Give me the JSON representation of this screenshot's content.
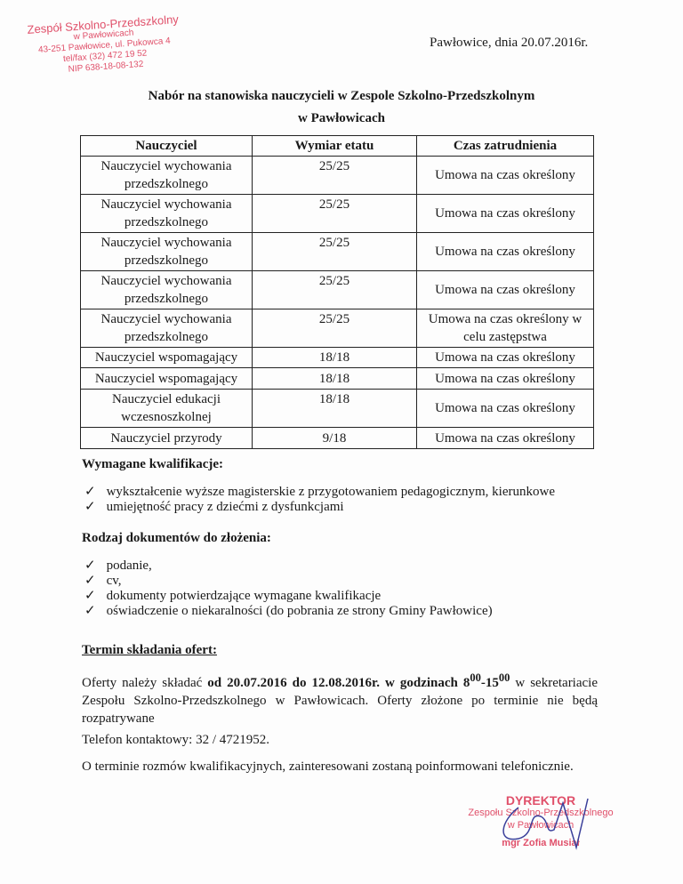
{
  "stamp": {
    "lines": [
      "Zespół Szkolno-Przedszkolny",
      "w Pawłowicach",
      "43-251 Pawłowice, ul. Pukowca 4",
      "tel/fax (32) 472 19 52",
      "NIP 638-18-08-132"
    ]
  },
  "date": "Pawłowice, dnia 20.07.2016r.",
  "title": "Nabór na stanowiska nauczycieli w Zespole Szkolno-Przedszkolnym",
  "subtitle": "w Pawłowicach",
  "table": {
    "headers": [
      "Nauczyciel",
      "Wymiar etatu",
      "Czas zatrudnienia"
    ],
    "rows": [
      [
        "Nauczyciel wychowania przedszkolnego",
        "25/25",
        "Umowa na czas określony"
      ],
      [
        "Nauczyciel wychowania przedszkolnego",
        "25/25",
        "Umowa na czas określony"
      ],
      [
        "Nauczyciel wychowania przedszkolnego",
        "25/25",
        "Umowa na czas określony"
      ],
      [
        "Nauczyciel wychowania przedszkolnego",
        "25/25",
        "Umowa na czas określony"
      ],
      [
        "Nauczyciel wychowania przedszkolnego",
        "25/25",
        "Umowa na czas określony w celu zastępstwa"
      ],
      [
        "Nauczyciel wspomagający",
        "18/18",
        "Umowa na czas określony"
      ],
      [
        "Nauczyciel wspomagający",
        "18/18",
        "Umowa na czas określony"
      ],
      [
        "Nauczyciel edukacji wczesnoszkolnej",
        "18/18",
        "Umowa na czas określony"
      ],
      [
        "Nauczyciel przyrody",
        "9/18",
        "Umowa na czas określony"
      ]
    ]
  },
  "qualifications": {
    "heading": "Wymagane kwalifikacje:",
    "items": [
      "wykształcenie wyższe magisterskie z przygotowaniem pedagogicznym, kierunkowe",
      "umiejętność pracy z dziećmi z dysfunkcjami"
    ]
  },
  "documents": {
    "heading": "Rodzaj dokumentów do złożenia:",
    "items": [
      "podanie,",
      "cv,",
      "dokumenty potwierdzające wymagane kwalifikacje",
      "oświadczenie o niekaralności (do pobrania ze strony Gminy Pawłowice)"
    ]
  },
  "deadline": {
    "heading": "Termin składania ofert:",
    "p1": "Oferty należy składać ",
    "p1_bold": "od 20.07.2016 do 12.08.2016r. w godzinach 8",
    "sup1": "00",
    "dash": "-15",
    "sup2": "00",
    "p1_rest": " w sekretariacie Zespołu Szkolno-Przedszkolnego w Pawłowicach. Oferty złożone po terminie nie będą rozpatrywane"
  },
  "phone": "Telefon kontaktowy: 32 / 4721952.",
  "interviews": "O terminie rozmów kwalifikacyjnych, zainteresowani zostaną poinformowani telefonicznie.",
  "signature_stamp": {
    "title": "DYREKTOR",
    "line1": "Zespołu Szkolno-Przedszkolnego",
    "line2": "w Pawłowicach",
    "name": "mgr Zofia Musiał"
  },
  "colors": {
    "stamp": "#e0506a",
    "ink": "#3a3f9a"
  }
}
